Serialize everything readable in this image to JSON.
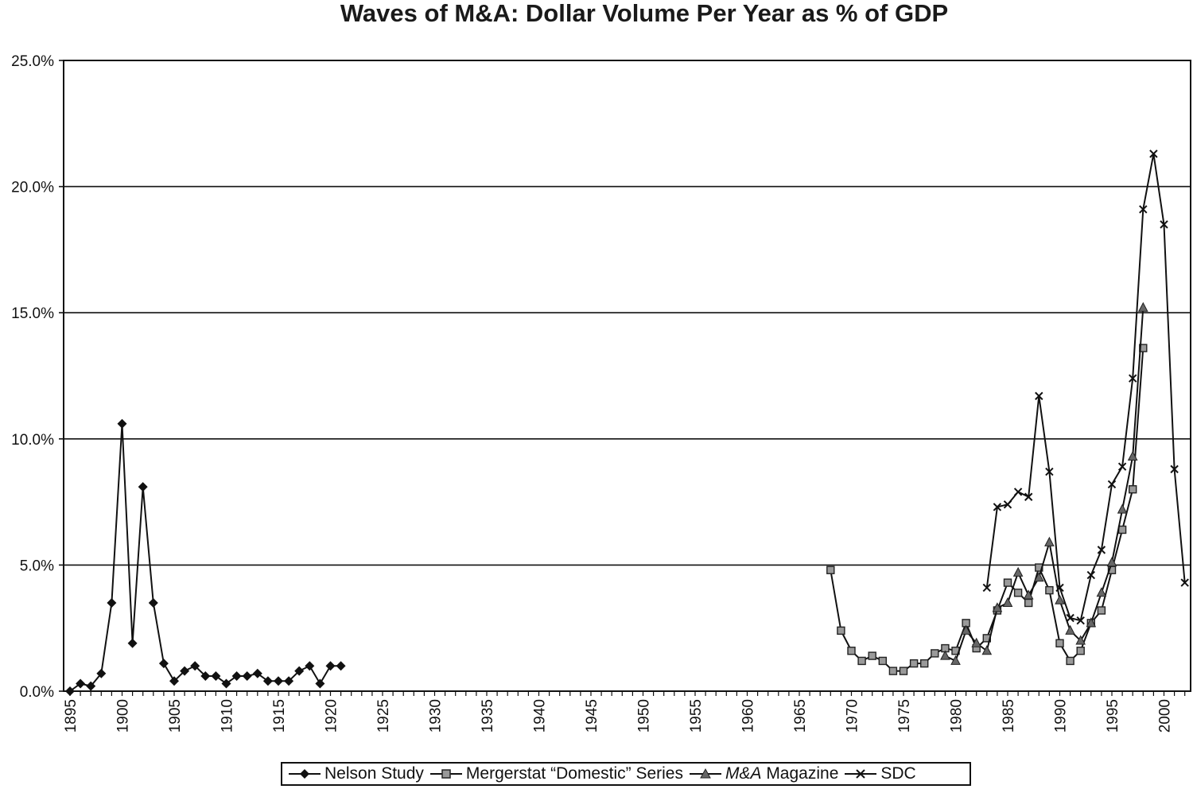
{
  "chart_data": {
    "type": "line",
    "title": "Waves of M&A: Dollar Volume Per Year as % of GDP",
    "xlabel": "",
    "ylabel": "",
    "xlim": [
      1895,
      2002
    ],
    "ylim": [
      0,
      25
    ],
    "y_ticks": [
      "0.0%",
      "5.0%",
      "10.0%",
      "15.0%",
      "20.0%",
      "25.0%"
    ],
    "x_ticks": [
      "1895",
      "1900",
      "1905",
      "1910",
      "1915",
      "1920",
      "1925",
      "1930",
      "1935",
      "1940",
      "1945",
      "1950",
      "1955",
      "1960",
      "1965",
      "1970",
      "1975",
      "1980",
      "1985",
      "1990",
      "1995",
      "2000"
    ],
    "grid": "horizontal",
    "legend_position": "bottom",
    "series": [
      {
        "name": "Nelson Study",
        "marker": "diamond",
        "color": "#111111",
        "x": [
          1895,
          1896,
          1897,
          1898,
          1899,
          1900,
          1901,
          1902,
          1903,
          1904,
          1905,
          1906,
          1907,
          1908,
          1909,
          1910,
          1911,
          1912,
          1913,
          1914,
          1915,
          1916,
          1917,
          1918,
          1919,
          1920,
          1921
        ],
        "y": [
          0.0,
          0.3,
          0.2,
          0.7,
          3.5,
          10.6,
          1.9,
          8.1,
          3.5,
          1.1,
          0.4,
          0.8,
          1.0,
          0.6,
          0.6,
          0.3,
          0.6,
          0.6,
          0.7,
          0.4,
          0.4,
          0.4,
          0.8,
          1.0,
          0.3,
          1.0,
          1.0
        ]
      },
      {
        "name": "Mergerstat “Domestic” Series",
        "marker": "square",
        "color": "#111111",
        "x": [
          1968,
          1969,
          1970,
          1971,
          1972,
          1973,
          1974,
          1975,
          1976,
          1977,
          1978,
          1979,
          1980,
          1981,
          1982,
          1983,
          1984,
          1985,
          1986,
          1987,
          1988,
          1989,
          1990,
          1991,
          1992,
          1993,
          1994,
          1995,
          1996,
          1997,
          1998
        ],
        "y": [
          4.8,
          2.4,
          1.6,
          1.2,
          1.4,
          1.2,
          0.8,
          0.8,
          1.1,
          1.1,
          1.5,
          1.7,
          1.6,
          2.7,
          1.7,
          2.1,
          3.2,
          4.3,
          3.9,
          3.5,
          4.9,
          4.0,
          1.9,
          1.2,
          1.6,
          2.7,
          3.2,
          4.8,
          6.4,
          8.0,
          13.6
        ]
      },
      {
        "name": "M&A Magazine",
        "marker": "triangle",
        "color": "#111111",
        "x": [
          1979,
          1980,
          1981,
          1982,
          1983,
          1984,
          1985,
          1986,
          1987,
          1988,
          1989,
          1990,
          1991,
          1992,
          1993,
          1994,
          1995,
          1996,
          1997,
          1998
        ],
        "y": [
          1.4,
          1.2,
          2.4,
          1.9,
          1.6,
          3.3,
          3.5,
          4.7,
          3.8,
          4.5,
          5.9,
          3.6,
          2.4,
          2.0,
          2.7,
          3.9,
          5.1,
          7.2,
          9.3,
          15.2
        ]
      },
      {
        "name": "SDC",
        "marker": "x",
        "color": "#111111",
        "x": [
          1983,
          1984,
          1985,
          1986,
          1987,
          1988,
          1989,
          1990,
          1991,
          1992,
          1993,
          1994,
          1995,
          1996,
          1997,
          1998,
          1999,
          2000,
          2001,
          2002
        ],
        "y": [
          4.1,
          7.3,
          7.4,
          7.9,
          7.7,
          11.7,
          8.7,
          4.1,
          2.9,
          2.8,
          4.6,
          5.6,
          8.2,
          8.9,
          12.4,
          19.1,
          21.3,
          18.5,
          8.8,
          4.3
        ]
      }
    ]
  },
  "legend": {
    "nelson": "Nelson Study",
    "mergerstat": "Mergerstat “Domestic” Series",
    "ma_italic": "M&A",
    "ma_rest": " Magazine",
    "sdc": "SDC"
  }
}
